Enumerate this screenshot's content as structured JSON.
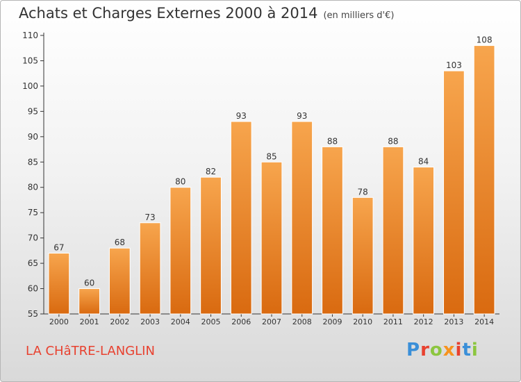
{
  "title": "Achats et Charges Externes 2000 à 2014",
  "subtitle": "(en milliers d'€)",
  "town": "LA CHâTRE-LANGLIN",
  "logo": {
    "text": "Proxiti",
    "letters": [
      "P",
      "r",
      "o",
      "x",
      "i",
      "t",
      "i"
    ],
    "colors": [
      "#3a8fd8",
      "#e8412f",
      "#8cc63f",
      "#f7931e",
      "#e8412f",
      "#3a8fd8",
      "#8cc63f"
    ]
  },
  "colors": {
    "bar_top": "#f7a54d",
    "bar_bottom": "#d96a10",
    "town": "#e8412f"
  },
  "chart_data": {
    "type": "bar",
    "categories": [
      "2000",
      "2001",
      "2002",
      "2003",
      "2004",
      "2005",
      "2006",
      "2007",
      "2008",
      "2009",
      "2010",
      "2011",
      "2012",
      "2013",
      "2014"
    ],
    "values": [
      67,
      60,
      68,
      73,
      80,
      82,
      93,
      85,
      93,
      88,
      78,
      88,
      84,
      103,
      108
    ],
    "yticks": [
      55,
      60,
      65,
      70,
      75,
      80,
      85,
      90,
      95,
      100,
      105,
      110
    ],
    "ylim": [
      55,
      110
    ],
    "grid": "none",
    "data_labels": true
  }
}
